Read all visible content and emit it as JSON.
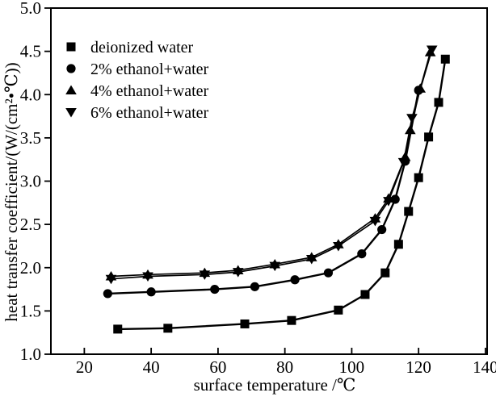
{
  "figure": {
    "background_color": "#ffffff",
    "ink_color": "#000000"
  },
  "chart_data": {
    "type": "line",
    "title": "",
    "xlabel": "surface temperature /℃",
    "ylabel": "heat transfer coefficient/(W/(cm²•℃))",
    "xlim": [
      10,
      140.5
    ],
    "ylim": [
      1.0,
      5.0
    ],
    "grid": false,
    "legend_position": "upper-left-inside",
    "x_tick_values": [
      20,
      40,
      60,
      80,
      100,
      120,
      140
    ],
    "x_tick_labels": [
      "20",
      "40",
      "60",
      "80",
      "100",
      "120",
      "140"
    ],
    "y_tick_values": [
      1.0,
      1.5,
      2.0,
      2.5,
      3.0,
      3.5,
      4.0,
      4.5,
      5.0
    ],
    "y_tick_labels": [
      "1.0",
      "1.5",
      "2.0",
      "2.5",
      "3.0",
      "3.5",
      "4.0",
      "4.5",
      "5.0"
    ],
    "series": [
      {
        "name": "deionized water",
        "marker": "square",
        "points": [
          [
            30,
            1.29
          ],
          [
            45,
            1.3
          ],
          [
            68,
            1.35
          ],
          [
            82,
            1.39
          ],
          [
            96,
            1.51
          ],
          [
            104,
            1.69
          ],
          [
            110,
            1.94
          ],
          [
            114,
            2.27
          ],
          [
            117,
            2.65
          ],
          [
            120,
            3.04
          ],
          [
            123,
            3.51
          ],
          [
            126,
            3.91
          ],
          [
            128,
            4.41
          ]
        ]
      },
      {
        "name": "2% ethanol+water",
        "marker": "circle",
        "points": [
          [
            27,
            1.7
          ],
          [
            40,
            1.72
          ],
          [
            59,
            1.75
          ],
          [
            71,
            1.78
          ],
          [
            83,
            1.86
          ],
          [
            93,
            1.94
          ],
          [
            103,
            2.16
          ],
          [
            109,
            2.44
          ],
          [
            113,
            2.79
          ],
          [
            116,
            3.23
          ],
          [
            120,
            4.05
          ]
        ]
      },
      {
        "name": "4% ethanol+water",
        "marker": "triangle-up",
        "points": [
          [
            28,
            1.9
          ],
          [
            39,
            1.92
          ],
          [
            56,
            1.94
          ],
          [
            66,
            1.97
          ],
          [
            77,
            2.04
          ],
          [
            88,
            2.12
          ],
          [
            96,
            2.27
          ],
          [
            107,
            2.57
          ],
          [
            111,
            2.8
          ],
          [
            116,
            3.28
          ],
          [
            117.5,
            3.59
          ],
          [
            120.5,
            4.07
          ],
          [
            123.5,
            4.49
          ]
        ]
      },
      {
        "name": "6% ethanol+water",
        "marker": "triangle-down",
        "points": [
          [
            28,
            1.87
          ],
          [
            39,
            1.9
          ],
          [
            56,
            1.92
          ],
          [
            66,
            1.95
          ],
          [
            77,
            2.02
          ],
          [
            88,
            2.1
          ],
          [
            96,
            2.25
          ],
          [
            107,
            2.54
          ],
          [
            111,
            2.77
          ],
          [
            115.5,
            3.22
          ],
          [
            118,
            3.73
          ],
          [
            124,
            4.52
          ]
        ]
      }
    ]
  }
}
